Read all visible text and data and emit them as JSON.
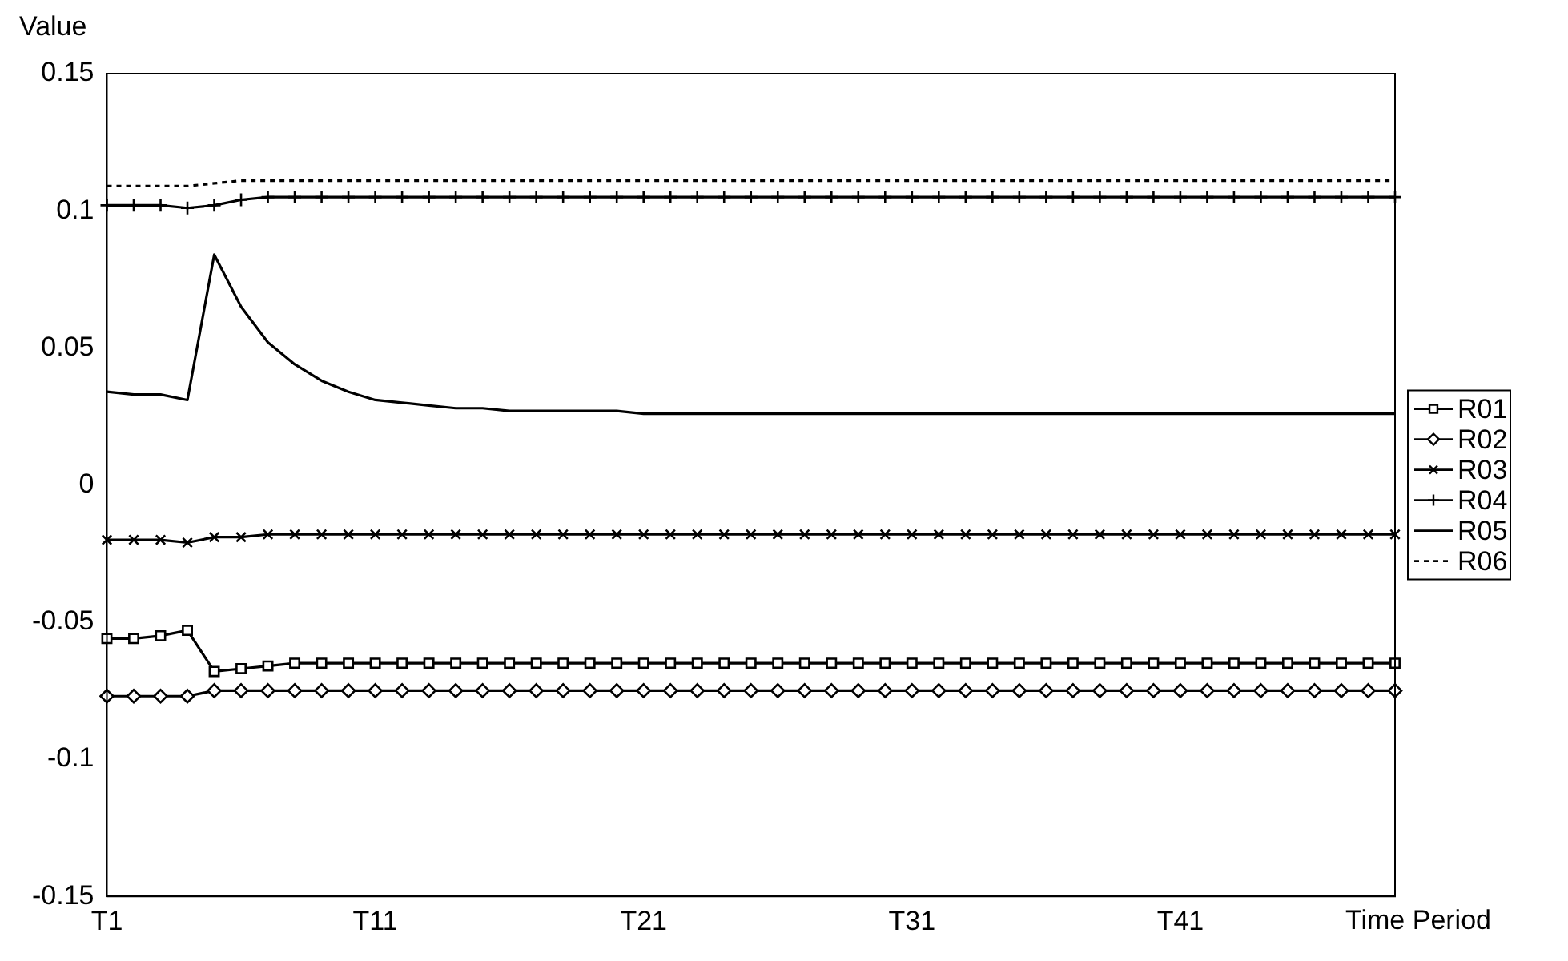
{
  "chart_data": {
    "type": "line",
    "xlabel": "Time Period",
    "ylabel": "Value",
    "categories": [
      "T1",
      null,
      null,
      null,
      null,
      null,
      null,
      null,
      null,
      null,
      "T11",
      null,
      null,
      null,
      null,
      null,
      null,
      null,
      null,
      null,
      "T21",
      null,
      null,
      null,
      null,
      null,
      null,
      null,
      null,
      null,
      "T31",
      null,
      null,
      null,
      null,
      null,
      null,
      null,
      null,
      null,
      "T41",
      null,
      null,
      null,
      null,
      null,
      null,
      null,
      null
    ],
    "ylim": [
      -0.15,
      0.15
    ],
    "yticks": [
      -0.15,
      -0.1,
      -0.05,
      0,
      0.05,
      0.1,
      0.15
    ],
    "grid": false,
    "legend": "right",
    "series": [
      {
        "name": "R01",
        "color": "#000000",
        "marker": "square",
        "line_style": "solid",
        "values": [
          -0.056,
          -0.056,
          -0.055,
          -0.053,
          -0.068,
          -0.067,
          -0.066,
          -0.065,
          -0.065,
          -0.065,
          -0.065,
          -0.065,
          -0.065,
          -0.065,
          -0.065,
          -0.065,
          -0.065,
          -0.065,
          -0.065,
          -0.065,
          -0.065,
          -0.065,
          -0.065,
          -0.065,
          -0.065,
          -0.065,
          -0.065,
          -0.065,
          -0.065,
          -0.065,
          -0.065,
          -0.065,
          -0.065,
          -0.065,
          -0.065,
          -0.065,
          -0.065,
          -0.065,
          -0.065,
          -0.065,
          -0.065,
          -0.065,
          -0.065,
          -0.065,
          -0.065,
          -0.065,
          -0.065,
          -0.065,
          -0.065
        ]
      },
      {
        "name": "R02",
        "color": "#000000",
        "marker": "diamond",
        "line_style": "solid",
        "values": [
          -0.077,
          -0.077,
          -0.077,
          -0.077,
          -0.075,
          -0.075,
          -0.075,
          -0.075,
          -0.075,
          -0.075,
          -0.075,
          -0.075,
          -0.075,
          -0.075,
          -0.075,
          -0.075,
          -0.075,
          -0.075,
          -0.075,
          -0.075,
          -0.075,
          -0.075,
          -0.075,
          -0.075,
          -0.075,
          -0.075,
          -0.075,
          -0.075,
          -0.075,
          -0.075,
          -0.075,
          -0.075,
          -0.075,
          -0.075,
          -0.075,
          -0.075,
          -0.075,
          -0.075,
          -0.075,
          -0.075,
          -0.075,
          -0.075,
          -0.075,
          -0.075,
          -0.075,
          -0.075,
          -0.075,
          -0.075,
          -0.075
        ]
      },
      {
        "name": "R03",
        "color": "#000000",
        "marker": "cross",
        "line_style": "solid",
        "values": [
          -0.02,
          -0.02,
          -0.02,
          -0.021,
          -0.019,
          -0.019,
          -0.018,
          -0.018,
          -0.018,
          -0.018,
          -0.018,
          -0.018,
          -0.018,
          -0.018,
          -0.018,
          -0.018,
          -0.018,
          -0.018,
          -0.018,
          -0.018,
          -0.018,
          -0.018,
          -0.018,
          -0.018,
          -0.018,
          -0.018,
          -0.018,
          -0.018,
          -0.018,
          -0.018,
          -0.018,
          -0.018,
          -0.018,
          -0.018,
          -0.018,
          -0.018,
          -0.018,
          -0.018,
          -0.018,
          -0.018,
          -0.018,
          -0.018,
          -0.018,
          -0.018,
          -0.018,
          -0.018,
          -0.018,
          -0.018,
          -0.018
        ]
      },
      {
        "name": "R04",
        "color": "#000000",
        "marker": "plus",
        "line_style": "solid",
        "values": [
          0.102,
          0.102,
          0.102,
          0.101,
          0.102,
          0.104,
          0.105,
          0.105,
          0.105,
          0.105,
          0.105,
          0.105,
          0.105,
          0.105,
          0.105,
          0.105,
          0.105,
          0.105,
          0.105,
          0.105,
          0.105,
          0.105,
          0.105,
          0.105,
          0.105,
          0.105,
          0.105,
          0.105,
          0.105,
          0.105,
          0.105,
          0.105,
          0.105,
          0.105,
          0.105,
          0.105,
          0.105,
          0.105,
          0.105,
          0.105,
          0.105,
          0.105,
          0.105,
          0.105,
          0.105,
          0.105,
          0.105,
          0.105,
          0.105
        ]
      },
      {
        "name": "R05",
        "color": "#000000",
        "marker": "none",
        "line_style": "solid",
        "values": [
          0.034,
          0.033,
          0.033,
          0.031,
          0.084,
          0.065,
          0.052,
          0.044,
          0.038,
          0.034,
          0.031,
          0.03,
          0.029,
          0.028,
          0.028,
          0.027,
          0.027,
          0.027,
          0.027,
          0.027,
          0.026,
          0.026,
          0.026,
          0.026,
          0.026,
          0.026,
          0.026,
          0.026,
          0.026,
          0.026,
          0.026,
          0.026,
          0.026,
          0.026,
          0.026,
          0.026,
          0.026,
          0.026,
          0.026,
          0.026,
          0.026,
          0.026,
          0.026,
          0.026,
          0.026,
          0.026,
          0.026,
          0.026,
          0.026
        ]
      },
      {
        "name": "R06",
        "color": "#000000",
        "marker": "none",
        "line_style": "dotted",
        "values": [
          0.109,
          0.109,
          0.109,
          0.109,
          0.11,
          0.111,
          0.111,
          0.111,
          0.111,
          0.111,
          0.111,
          0.111,
          0.111,
          0.111,
          0.111,
          0.111,
          0.111,
          0.111,
          0.111,
          0.111,
          0.111,
          0.111,
          0.111,
          0.111,
          0.111,
          0.111,
          0.111,
          0.111,
          0.111,
          0.111,
          0.111,
          0.111,
          0.111,
          0.111,
          0.111,
          0.111,
          0.111,
          0.111,
          0.111,
          0.111,
          0.111,
          0.111,
          0.111,
          0.111,
          0.111,
          0.111,
          0.111,
          0.111,
          0.111
        ]
      }
    ]
  }
}
